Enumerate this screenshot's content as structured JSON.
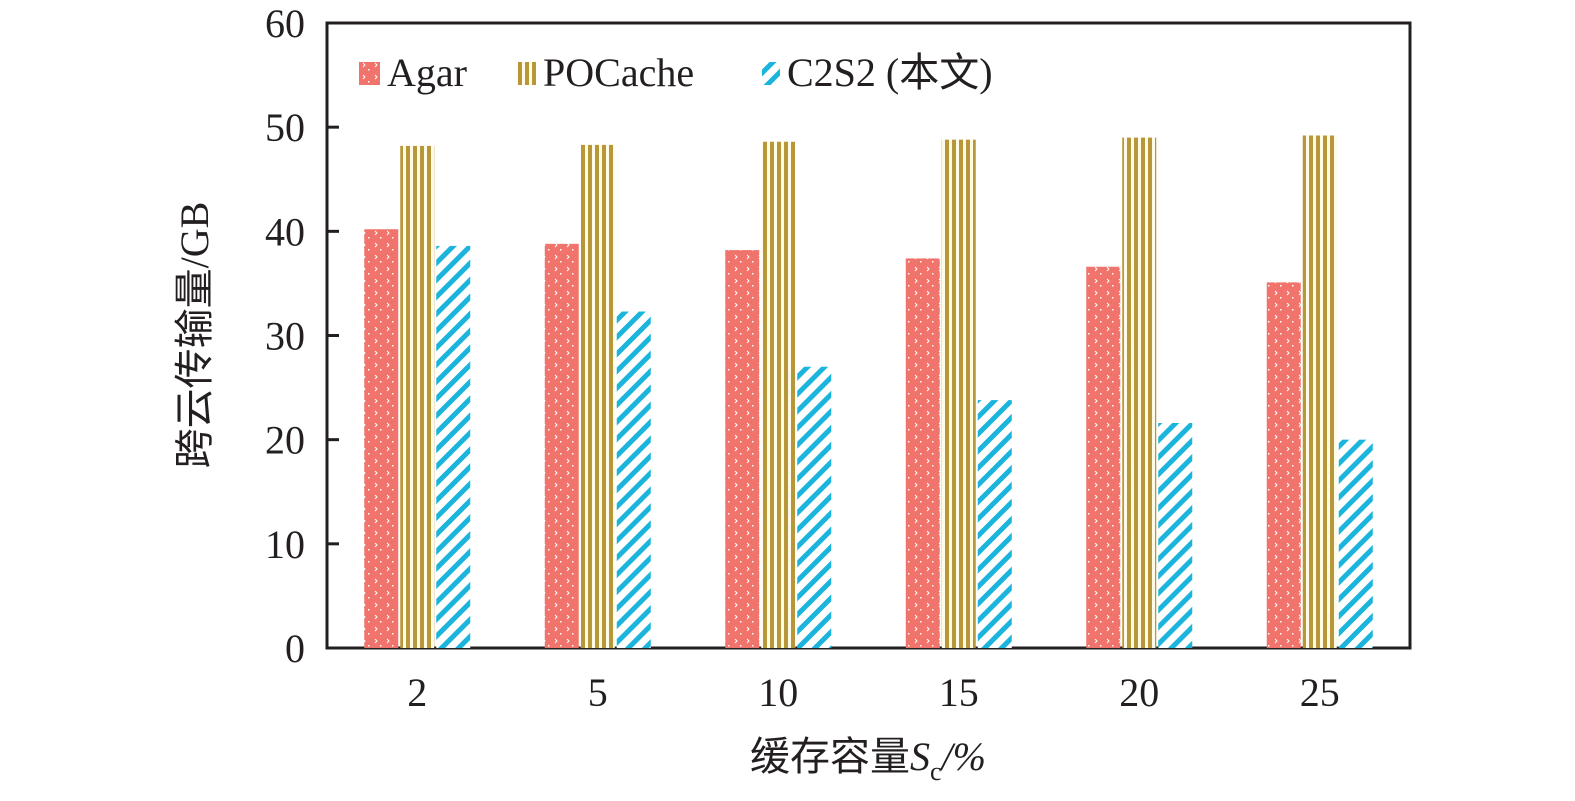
{
  "chart_data": {
    "type": "bar",
    "title": "",
    "xlabel": "缓存容量S_c/%",
    "xlabel_parts": {
      "prefix": "缓存容量",
      "var": "S",
      "sub": "c",
      "suffix": "/%"
    },
    "ylabel": "跨云传输量/GB",
    "categories": [
      "2",
      "5",
      "10",
      "15",
      "20",
      "25"
    ],
    "ylim": [
      0,
      60
    ],
    "yticks": [
      "0",
      "10",
      "20",
      "30",
      "40",
      "50",
      "60"
    ],
    "grid": false,
    "legend_position": "top-left",
    "series": [
      {
        "name": "Agar",
        "color": "#f0746b",
        "pattern": "dots",
        "values": [
          40.2,
          38.8,
          38.2,
          37.4,
          36.6,
          35.1
        ]
      },
      {
        "name": "POCache",
        "color": "#b8963a",
        "pattern": "vertical-stripes",
        "values": [
          48.2,
          48.3,
          48.6,
          48.8,
          49.0,
          49.2
        ]
      },
      {
        "name": "C2S2 (本文)",
        "color": "#1ab4dc",
        "pattern": "diagonal-stripes",
        "values": [
          38.6,
          32.3,
          27.0,
          23.8,
          21.6,
          20.0
        ]
      }
    ]
  }
}
